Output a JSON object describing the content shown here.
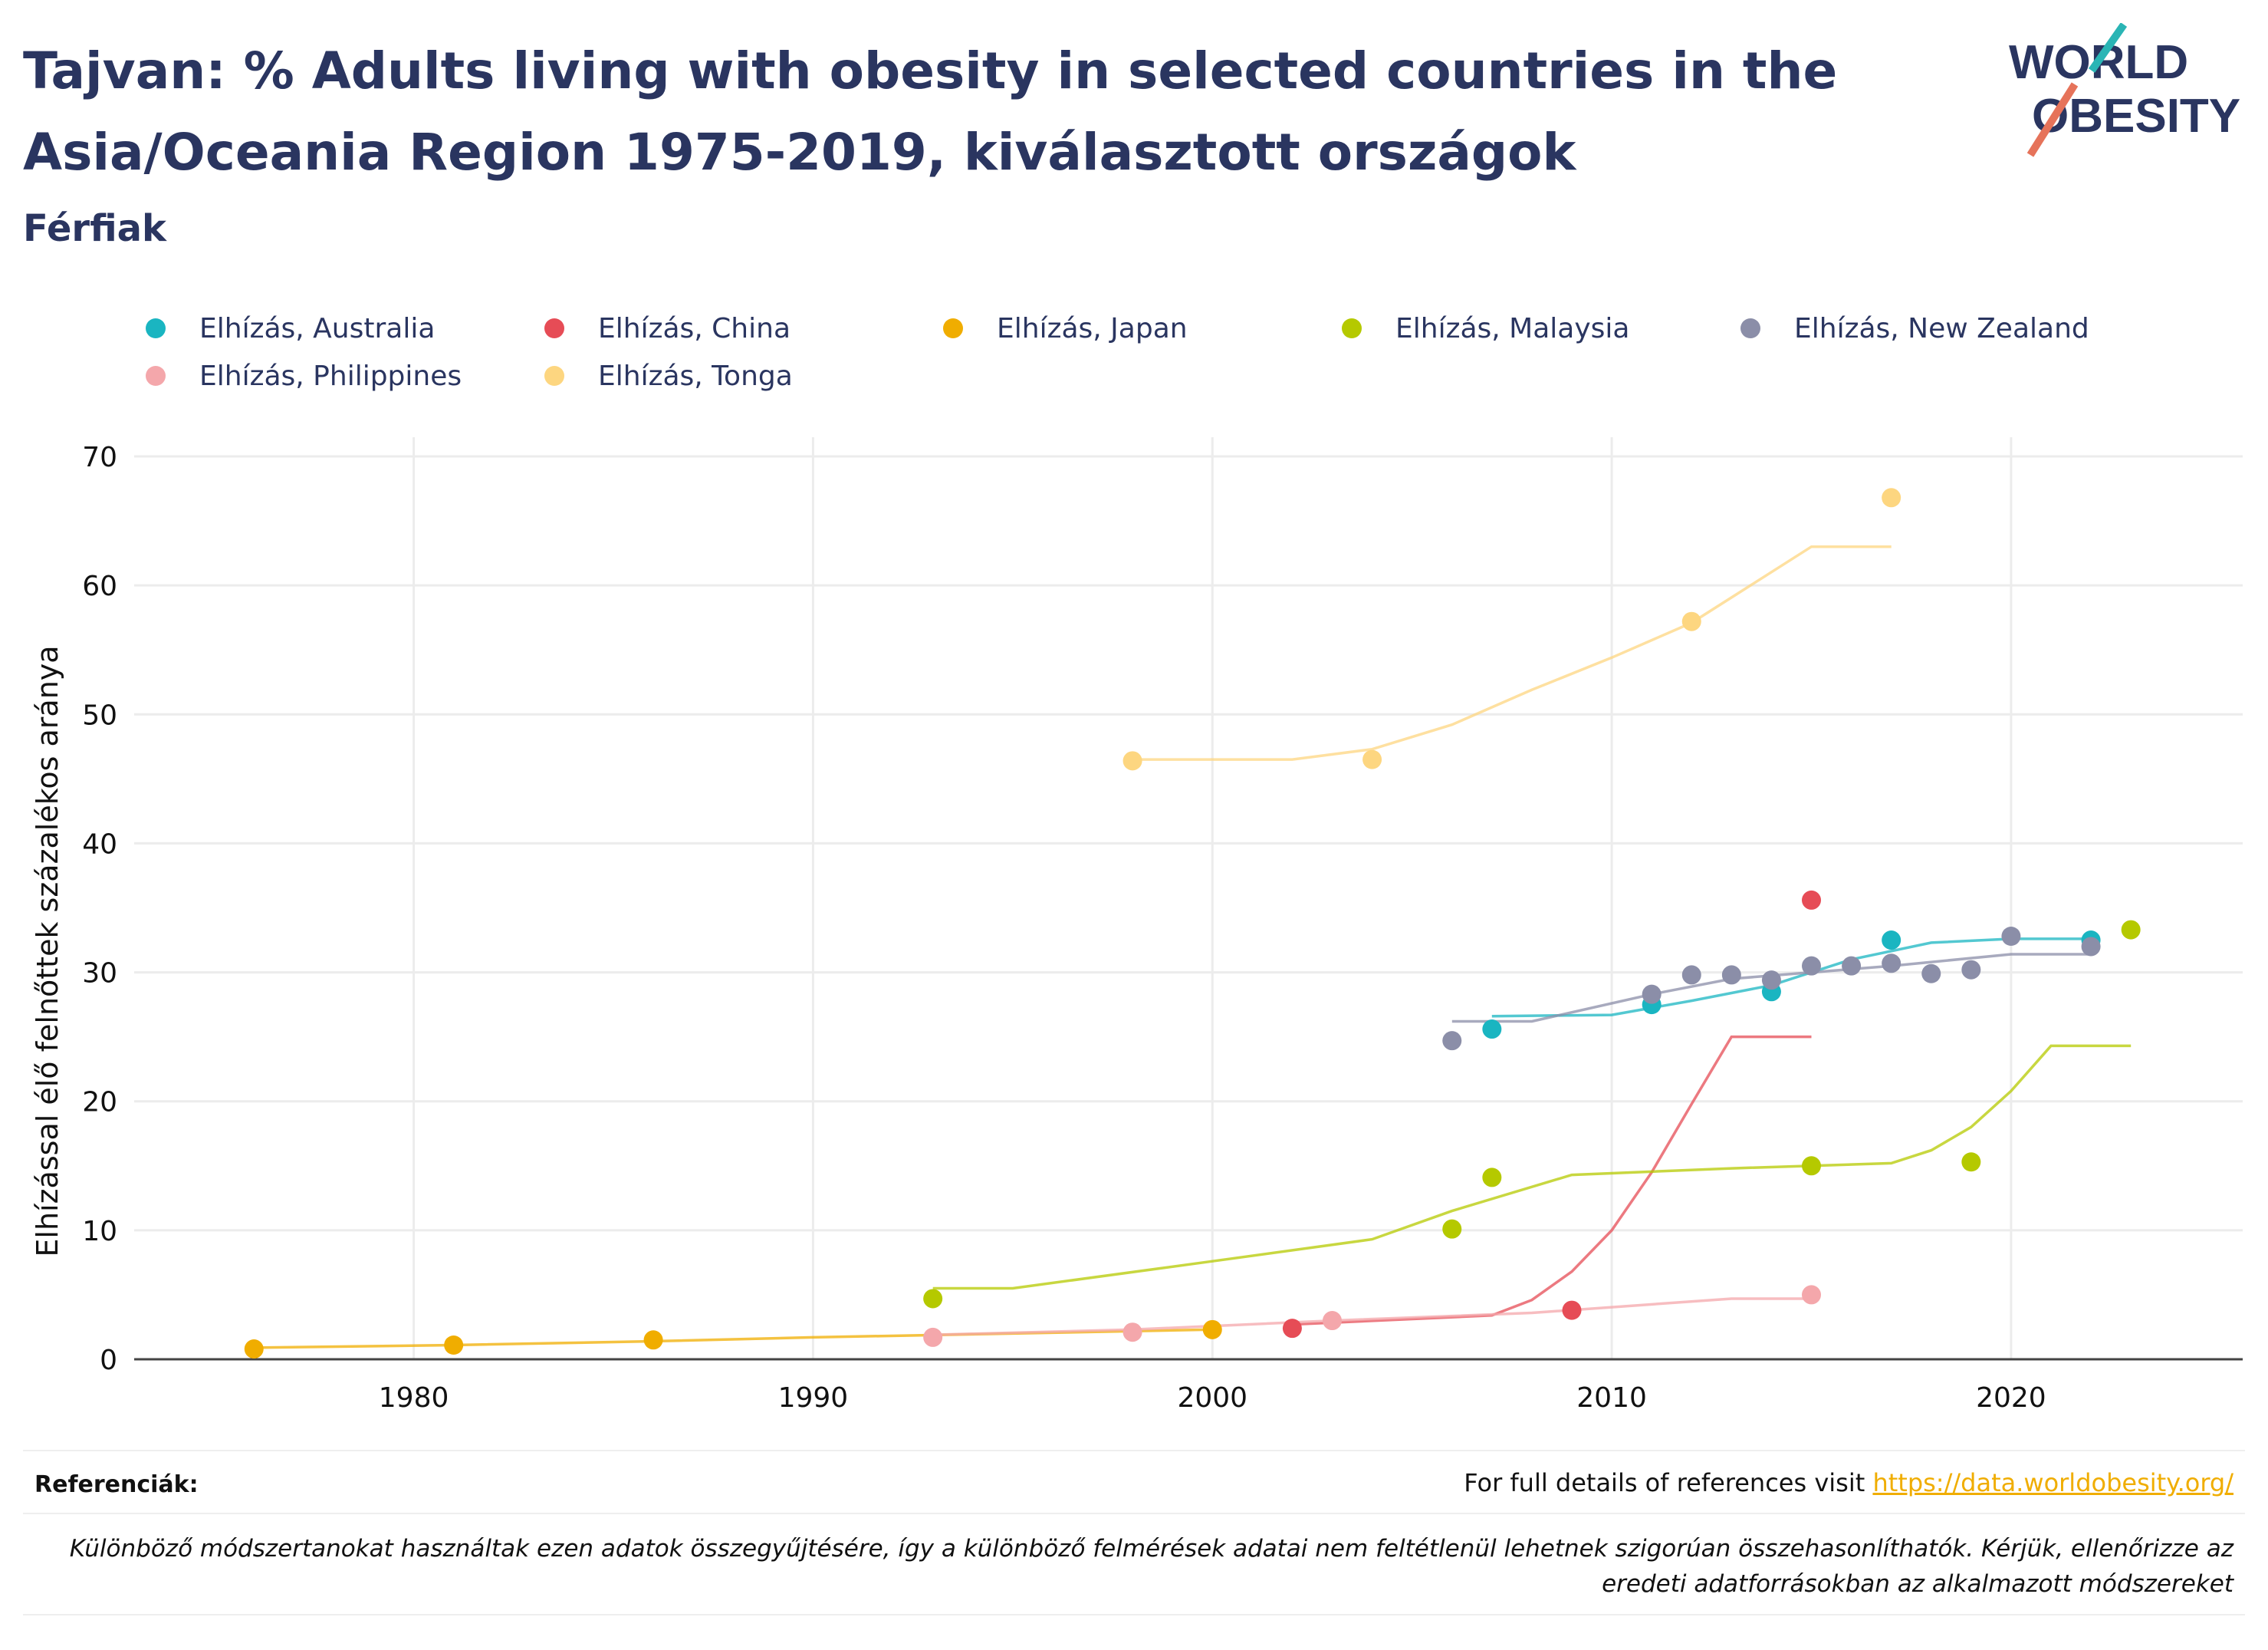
{
  "page": {
    "title": "Tajvan: % Adults living with obesity in selected countries in the Asia/Oceania Region 1975-2019, kiválasztott országok",
    "subtitle": "Férfiak",
    "logo": {
      "line1": "WORLD",
      "line2": "OBESITY"
    }
  },
  "footer": {
    "references_label": "Referenciák:",
    "references_text": "For full details of references visit",
    "references_link": "https://data.worldobesity.org/",
    "note": "Különböző módszertanokat használtak ezen adatok összegyűjtésére, így a különböző felmérések adatai nem feltétlenül lehetnek szigorúan összehasonlíthatók. Kérjük, ellenőrizze az eredeti adatforrásokban az alkalmazott módszereket"
  },
  "chart_data": {
    "type": "scatter",
    "ylabel": "Elhízással élő felnőttek százalékos aránya",
    "xlabel": "",
    "xlim": [
      1973,
      2025.8
    ],
    "ylim": [
      0,
      70
    ],
    "xticks": [
      1980,
      1990,
      2000,
      2010,
      2020
    ],
    "yticks": [
      0,
      10,
      20,
      30,
      40,
      50,
      60,
      70
    ],
    "grid": true,
    "legend_position": "top",
    "series": [
      {
        "name": "Elhízás, Australia",
        "color": "#1ab5c1",
        "points": [
          [
            2007,
            25.6
          ],
          [
            2011,
            27.5
          ],
          [
            2014,
            28.5
          ],
          [
            2017,
            32.5
          ],
          [
            2022,
            32.5
          ]
        ],
        "trend": [
          [
            2007,
            26.6
          ],
          [
            2010,
            26.7
          ],
          [
            2012,
            27.8
          ],
          [
            2014,
            29.0
          ],
          [
            2016,
            31.0
          ],
          [
            2018,
            32.3
          ],
          [
            2020,
            32.6
          ],
          [
            2022,
            32.6
          ]
        ]
      },
      {
        "name": "Elhízás, China",
        "color": "#e64c56",
        "points": [
          [
            2002,
            2.4
          ],
          [
            2009,
            3.8
          ],
          [
            2015,
            35.6
          ]
        ],
        "trend": [
          [
            2002,
            2.7
          ],
          [
            2007,
            3.4
          ],
          [
            2008,
            4.6
          ],
          [
            2009,
            6.8
          ],
          [
            2010,
            10.0
          ],
          [
            2011,
            14.5
          ],
          [
            2012,
            19.8
          ],
          [
            2013,
            25.0
          ],
          [
            2015,
            25.0
          ]
        ]
      },
      {
        "name": "Elhízás, Japan",
        "color": "#f0ad00",
        "points": [
          [
            1976,
            0.8
          ],
          [
            1981,
            1.1
          ],
          [
            1986,
            1.5
          ],
          [
            2000,
            2.3
          ]
        ],
        "trend": [
          [
            1976,
            0.9
          ],
          [
            1981,
            1.1
          ],
          [
            1986,
            1.4
          ],
          [
            1990,
            1.7
          ],
          [
            1995,
            2.0
          ],
          [
            2000,
            2.3
          ]
        ]
      },
      {
        "name": "Elhízás, Malaysia",
        "color": "#b5c900",
        "points": [
          [
            1993,
            4.7
          ],
          [
            2006,
            10.1
          ],
          [
            2007,
            14.1
          ],
          [
            2015,
            15.0
          ],
          [
            2019,
            15.3
          ],
          [
            2023,
            33.3
          ]
        ],
        "trend": [
          [
            1993,
            5.5
          ],
          [
            1995,
            5.5
          ],
          [
            2000,
            7.6
          ],
          [
            2004,
            9.3
          ],
          [
            2006,
            11.5
          ],
          [
            2009,
            14.3
          ],
          [
            2013,
            14.8
          ],
          [
            2017,
            15.2
          ],
          [
            2018,
            16.2
          ],
          [
            2019,
            18.0
          ],
          [
            2020,
            20.8
          ],
          [
            2021,
            24.3
          ],
          [
            2023,
            24.3
          ]
        ]
      },
      {
        "name": "Elhízás, New Zealand",
        "color": "#8b8ea8",
        "points": [
          [
            2006,
            24.7
          ],
          [
            2011,
            28.3
          ],
          [
            2012,
            29.8
          ],
          [
            2013,
            29.8
          ],
          [
            2014,
            29.4
          ],
          [
            2015,
            30.5
          ],
          [
            2016,
            30.5
          ],
          [
            2017,
            30.7
          ],
          [
            2018,
            29.9
          ],
          [
            2019,
            30.2
          ],
          [
            2020,
            32.8
          ],
          [
            2022,
            32.0
          ]
        ],
        "trend": [
          [
            2006,
            26.2
          ],
          [
            2008,
            26.2
          ],
          [
            2011,
            28.3
          ],
          [
            2013,
            29.5
          ],
          [
            2015,
            30.0
          ],
          [
            2017,
            30.5
          ],
          [
            2020,
            31.4
          ],
          [
            2022,
            31.4
          ]
        ]
      },
      {
        "name": "Elhízás, Philippines",
        "color": "#f4a7ab",
        "points": [
          [
            1993,
            1.7
          ],
          [
            1998,
            2.1
          ],
          [
            2003,
            3.0
          ],
          [
            2015,
            5.0
          ]
        ],
        "trend": [
          [
            1993,
            1.9
          ],
          [
            1998,
            2.3
          ],
          [
            2003,
            3.0
          ],
          [
            2008,
            3.6
          ],
          [
            2013,
            4.7
          ],
          [
            2015,
            4.7
          ]
        ]
      },
      {
        "name": "Elhízás, Tonga",
        "color": "#fdd680",
        "points": [
          [
            1998,
            46.4
          ],
          [
            2004,
            46.5
          ],
          [
            2012,
            57.2
          ],
          [
            2017,
            66.8
          ]
        ],
        "trend": [
          [
            1998,
            46.5
          ],
          [
            2002,
            46.5
          ],
          [
            2004,
            47.3
          ],
          [
            2006,
            49.2
          ],
          [
            2008,
            51.9
          ],
          [
            2010,
            54.4
          ],
          [
            2012,
            57.1
          ],
          [
            2015,
            63.0
          ],
          [
            2017,
            63.0
          ]
        ]
      }
    ]
  }
}
